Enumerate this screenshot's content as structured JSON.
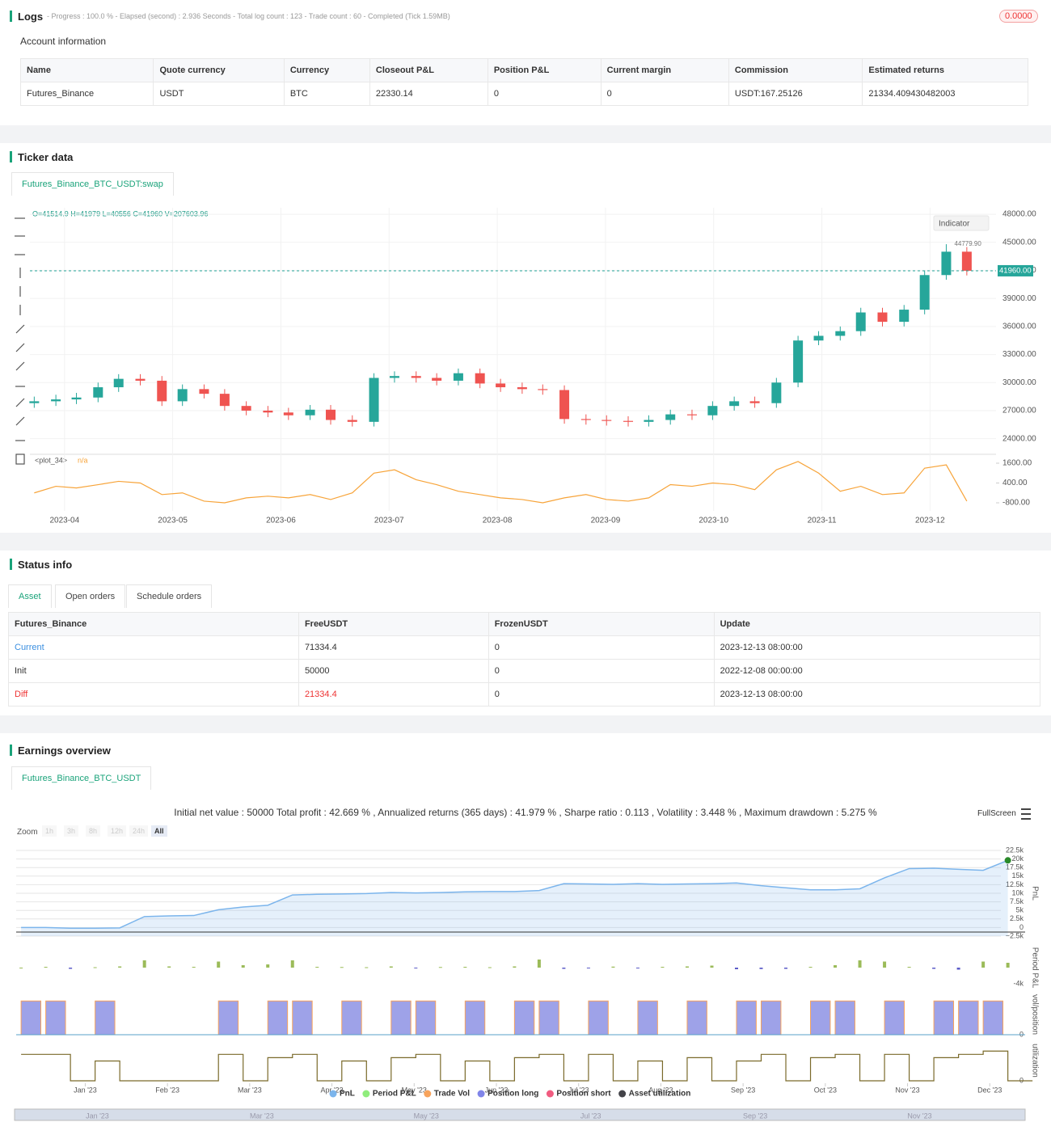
{
  "logs": {
    "title": "Logs",
    "meta": "- Progress : 100.0 % - Elapsed (second) : 2.936  Seconds - Total log count : 123 - Trade count : 60 - Completed (Tick 1.59MB)",
    "badge": "0.0000"
  },
  "account": {
    "title": "Account information",
    "columns": [
      "Name",
      "Quote currency",
      "Currency",
      "Closeout P&L",
      "Position P&L",
      "Current margin",
      "Commission",
      "Estimated returns"
    ],
    "rows": [
      [
        "Futures_Binance",
        "USDT",
        "BTC",
        "22330.14",
        "0",
        "0",
        "USDT:167.25126",
        "21334.409430482003"
      ]
    ]
  },
  "ticker": {
    "title": "Ticker data",
    "tab": "Futures_Binance_BTC_USDT:swap",
    "chart": {
      "type": "candlestick",
      "ohlc_label": "O=41514.9 H=41979 L=40556 C=41960 V=207603.96",
      "indicator_button": "Indicator",
      "high_annotation": "44779.90",
      "last_price": {
        "value": 41960,
        "label": "41960.00"
      },
      "up_color": "#26a69a",
      "down_color": "#ef5350",
      "x": [
        3.72,
        3.92,
        4.11,
        4.31,
        4.5,
        4.7,
        4.9,
        5.09,
        5.29,
        5.48,
        5.68,
        5.88,
        6.07,
        6.27,
        6.46,
        6.66,
        6.86,
        7.05,
        7.25,
        7.44,
        7.64,
        7.84,
        8.03,
        8.23,
        8.42,
        8.62,
        8.82,
        9.01,
        9.21,
        9.4,
        9.6,
        9.8,
        9.99,
        10.19,
        10.38,
        10.58,
        10.78,
        10.97,
        11.17,
        11.36,
        11.56,
        11.76,
        11.95,
        12.15,
        12.34
      ],
      "open": [
        27800,
        28000,
        28200,
        28400,
        29500,
        30400,
        30200,
        28000,
        29300,
        28800,
        27500,
        27000,
        26800,
        26500,
        27100,
        26000,
        25800,
        30500,
        30700,
        30500,
        30200,
        31000,
        29900,
        29500,
        29300,
        29200,
        26100,
        26000,
        25900,
        25800,
        26000,
        26600,
        26500,
        27500,
        28000,
        27800,
        30000,
        34500,
        35000,
        35500,
        37500,
        36500,
        37800,
        41500,
        44000
      ],
      "high": [
        28500,
        28700,
        28900,
        30000,
        30900,
        30900,
        30700,
        29800,
        29800,
        29300,
        28000,
        27500,
        27300,
        27600,
        27600,
        26500,
        31000,
        31200,
        31200,
        31000,
        31500,
        31500,
        30400,
        30000,
        29800,
        29700,
        26600,
        26500,
        26400,
        26500,
        27100,
        27100,
        28000,
        28500,
        28500,
        30500,
        35000,
        35500,
        36000,
        38000,
        38000,
        38300,
        42000,
        44800,
        44500
      ],
      "low": [
        27300,
        27500,
        27700,
        27900,
        29000,
        29700,
        27500,
        27500,
        28300,
        27000,
        26500,
        26300,
        26000,
        26000,
        25500,
        25300,
        25300,
        30000,
        30000,
        29700,
        29700,
        29400,
        29000,
        28800,
        28700,
        25600,
        25500,
        25400,
        25300,
        25300,
        25500,
        26000,
        26000,
        27000,
        27300,
        27300,
        29500,
        34000,
        34500,
        35000,
        36000,
        36000,
        37300,
        41000,
        41460
      ],
      "close": [
        28000,
        28200,
        28400,
        29500,
        30400,
        30200,
        28000,
        29300,
        28800,
        27500,
        27000,
        26800,
        26500,
        27100,
        26000,
        25800,
        30500,
        30700,
        30500,
        30200,
        31000,
        29900,
        29500,
        29300,
        29200,
        26100,
        26000,
        25900,
        25800,
        26000,
        26600,
        26500,
        27500,
        28000,
        27800,
        30000,
        34500,
        35000,
        35500,
        37500,
        36500,
        37800,
        41500,
        44000,
        41960
      ],
      "xlim": [
        3.68,
        12.61
      ],
      "xticks": [
        {
          "value": 4,
          "label": "2023-04"
        },
        {
          "value": 5,
          "label": "2023-05"
        },
        {
          "value": 6,
          "label": "2023-06"
        },
        {
          "value": 7,
          "label": "2023-07"
        },
        {
          "value": 8,
          "label": "2023-08"
        },
        {
          "value": 9,
          "label": "2023-09"
        },
        {
          "value": 10,
          "label": "2023-10"
        },
        {
          "value": 11,
          "label": "2023-11"
        },
        {
          "value": 12,
          "label": "2023-12"
        }
      ],
      "ylim": [
        22500,
        48700
      ],
      "yticks": [
        {
          "value": 48000,
          "label": "48000.00"
        },
        {
          "value": 45000,
          "label": "45000.00"
        },
        {
          "value": 42000,
          "label": "42000.00"
        },
        {
          "value": 39000,
          "label": "39000.00"
        },
        {
          "value": 36000,
          "label": "36000.00"
        },
        {
          "value": 33000,
          "label": "33000.00"
        },
        {
          "value": 30000,
          "label": "30000.00"
        },
        {
          "value": 27000,
          "label": "27000.00"
        },
        {
          "value": 24000,
          "label": "24000.00"
        }
      ],
      "indicator": {
        "name": "<plot_34>",
        "value_text": "n/a",
        "color": "#f7a43a",
        "values": [
          -200,
          200,
          100,
          300,
          500,
          400,
          -300,
          -200,
          -700,
          -800,
          -500,
          -400,
          -500,
          -300,
          -600,
          -200,
          1000,
          1200,
          600,
          300,
          -100,
          -300,
          -500,
          -600,
          -800,
          -500,
          -300,
          -600,
          -700,
          -500,
          300,
          200,
          400,
          300,
          0,
          1200,
          1700,
          1000,
          -100,
          200,
          -300,
          -200,
          1300,
          1500,
          -700
        ],
        "ylim": [
          -1290,
          2090
        ],
        "yticks": [
          {
            "value": 1600,
            "label": "1600.00"
          },
          {
            "value": 400,
            "label": "400.00"
          },
          {
            "value": -800,
            "label": "-800.00"
          }
        ]
      }
    }
  },
  "status": {
    "title": "Status info",
    "tabs": [
      "Asset",
      "Open orders",
      "Schedule orders"
    ],
    "columns": [
      "Futures_Binance",
      "FreeUSDT",
      "FrozenUSDT",
      "Update"
    ],
    "rows": [
      [
        "Current",
        "71334.4",
        "0",
        "2023-12-13 08:00:00"
      ],
      [
        "Init",
        "50000",
        "0",
        "2022-12-08 00:00:00"
      ],
      [
        "Diff",
        "21334.4",
        "0",
        "2023-12-13 08:00:00"
      ]
    ]
  },
  "earnings": {
    "title": "Earnings overview",
    "tab": "Futures_Binance_BTC_USDT",
    "summary": "Initial net value : 50000 Total profit : 42.669 % , Annualized returns (365 days) : 41.979 % , Sharpe ratio : 0.113 , Volatility : 3.448 % , Maximum drawdown : 5.275 %",
    "fullscreen": "FullScreen",
    "zoom_label": "Zoom",
    "zoom_buttons": [
      "1h",
      "3h",
      "8h",
      "12h",
      "24h",
      "All"
    ],
    "chart": {
      "type": "line",
      "x": [
        0.22,
        0.52,
        0.82,
        1.12,
        1.42,
        1.72,
        2.02,
        2.32,
        2.62,
        2.92,
        3.22,
        3.52,
        3.82,
        4.12,
        4.42,
        4.72,
        5.02,
        5.32,
        5.62,
        5.92,
        6.22,
        6.52,
        6.82,
        7.12,
        7.42,
        7.72,
        8.02,
        8.32,
        8.62,
        8.92,
        9.22,
        9.52,
        9.82,
        10.12,
        10.42,
        10.72,
        11.02,
        11.32,
        11.62,
        11.92,
        12.22
      ],
      "xlim": [
        0.16,
        12.43
      ],
      "xticks": [
        {
          "value": 1,
          "label": "Jan '23"
        },
        {
          "value": 2,
          "label": "Feb '23"
        },
        {
          "value": 3,
          "label": "Mar '23"
        },
        {
          "value": 4,
          "label": "Apr '23"
        },
        {
          "value": 5,
          "label": "May '23"
        },
        {
          "value": 6,
          "label": "Jun '23"
        },
        {
          "value": 7,
          "label": "Jul '23"
        },
        {
          "value": 8,
          "label": "Aug '23"
        },
        {
          "value": 9,
          "label": "Sep '23"
        },
        {
          "value": 10,
          "label": "Oct '23"
        },
        {
          "value": 11,
          "label": "Nov '23"
        },
        {
          "value": 12,
          "label": "Dec '23"
        }
      ],
      "navigator_ticks": [
        {
          "value": 1,
          "label": "Jan '23"
        },
        {
          "value": 3,
          "label": "Mar '23"
        },
        {
          "value": 5,
          "label": "May '23"
        },
        {
          "value": 7,
          "label": "Jul '23"
        },
        {
          "value": 9,
          "label": "Sep '23"
        },
        {
          "value": 11,
          "label": "Nov '23"
        }
      ],
      "pnl": {
        "title": "PnL",
        "color": "#7cb5ec",
        "values": [
          0,
          0,
          -200,
          -200,
          -100,
          3200,
          3400,
          3500,
          5200,
          6000,
          6500,
          9500,
          9700,
          9800,
          9900,
          10200,
          10100,
          10200,
          10400,
          10500,
          10500,
          10800,
          12800,
          12700,
          12600,
          12800,
          12600,
          12700,
          12800,
          13000,
          12200,
          11600,
          11000,
          11000,
          11300,
          14500,
          17200,
          17300,
          17000,
          16700,
          19600
        ],
        "ylim": [
          -2500,
          24150
        ],
        "yticks": [
          {
            "value": 22500,
            "label": "22.5k"
          },
          {
            "value": 20000,
            "label": "20k"
          },
          {
            "value": 17500,
            "label": "17.5k"
          },
          {
            "value": 15000,
            "label": "15k"
          },
          {
            "value": 12500,
            "label": "12.5k"
          },
          {
            "value": 10000,
            "label": "10k"
          },
          {
            "value": 7500,
            "label": "7.5k"
          },
          {
            "value": 5000,
            "label": "5k"
          },
          {
            "value": 2500,
            "label": "2.5k"
          },
          0,
          {
            "value": -2500,
            "label": "−2.5k"
          }
        ]
      },
      "period_pnl": {
        "title": "Period P&L",
        "color": "#9bbb59",
        "negative_color": "#5c5cc8",
        "values": [
          0,
          200,
          -300,
          100,
          300,
          1800,
          300,
          200,
          1500,
          600,
          800,
          1800,
          200,
          150,
          100,
          300,
          -200,
          150,
          200,
          100,
          300,
          2000,
          -300,
          -200,
          250,
          -150,
          200,
          300,
          500,
          -400,
          -350,
          -300,
          200,
          600,
          1800,
          1500,
          200,
          -300,
          -500,
          1500,
          1200
        ],
        "ylim": [
          -5000,
          5000
        ],
        "yticks": [
          {
            "value": -4000,
            "label": "-4k"
          }
        ]
      },
      "position": {
        "title": "vol/position",
        "color": "#9ea2e8",
        "edge_color": "#f7a35c",
        "values": [
          1,
          1,
          0,
          1,
          0,
          0,
          0,
          0,
          1,
          0,
          1,
          1,
          0,
          1,
          0,
          1,
          1,
          0,
          1,
          0,
          1,
          1,
          0,
          1,
          0,
          1,
          0,
          1,
          0,
          1,
          1,
          0,
          1,
          1,
          0,
          1,
          0,
          1,
          1,
          1,
          0
        ],
        "ylim": [
          0,
          1.15
        ],
        "yticks": [
          0
        ]
      },
      "utilization": {
        "title": "utilization",
        "color": "#7a6a2a",
        "values": [
          0.8,
          0.8,
          0,
          0.6,
          0,
          0,
          0,
          0,
          0.8,
          0,
          0.7,
          0.8,
          0,
          0.6,
          0,
          0.7,
          0.8,
          0,
          0.6,
          0,
          0.7,
          0.8,
          0,
          0.8,
          0,
          0.6,
          0,
          0.7,
          0,
          0.6,
          0.8,
          0,
          0.7,
          0.8,
          0,
          0.8,
          0,
          0.7,
          0.8,
          0.9,
          0
        ],
        "ylim": [
          0,
          1.15
        ],
        "yticks": [
          0
        ]
      },
      "legend": [
        {
          "name": "PnL",
          "color": "#7cb5ec"
        },
        {
          "name": "Period P&L",
          "color": "#90ed7d"
        },
        {
          "name": "Trade Vol",
          "color": "#f7a35c"
        },
        {
          "name": "Position long",
          "color": "#8085e9"
        },
        {
          "name": "Position short",
          "color": "#f15c80"
        },
        {
          "name": "Asset utilization",
          "color": "#434348"
        }
      ]
    }
  }
}
